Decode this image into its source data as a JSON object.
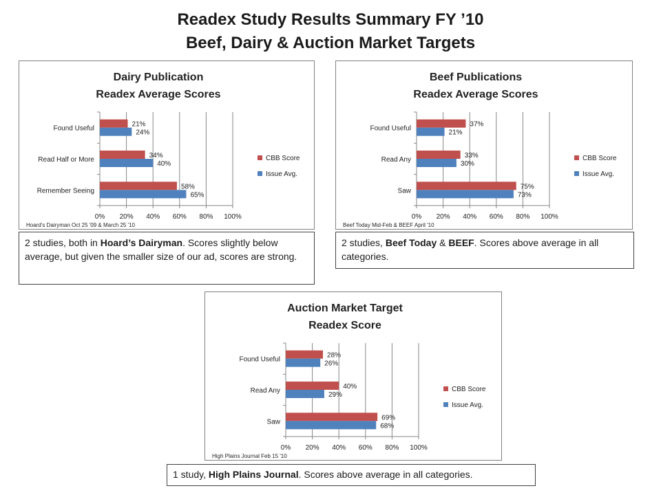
{
  "page": {
    "title_line1": "Readex Study Results Summary FY ’10",
    "title_line2": "Beef, Dairy & Auction Market Targets"
  },
  "colors": {
    "cbb": "#c0504d",
    "issue": "#4f81bd",
    "grid": "#868686"
  },
  "legend": {
    "cbb": "CBB Score",
    "issue": "Issue Avg."
  },
  "chart_data": [
    {
      "type": "bar",
      "orientation": "horizontal",
      "title": [
        "Dairy Publication",
        "Readex Average Scores"
      ],
      "categories": [
        "Found Useful",
        "Read Half or More",
        "Remember Seeing"
      ],
      "series": [
        {
          "name": "CBB Score",
          "values": [
            21,
            34,
            58
          ],
          "labels": [
            "21%",
            "34%",
            "58%"
          ]
        },
        {
          "name": "Issue Avg.",
          "values": [
            24,
            40,
            65
          ],
          "labels": [
            "24%",
            "40%",
            "65%"
          ]
        }
      ],
      "xlim": [
        0,
        100
      ],
      "xticks": [
        "0%",
        "20%",
        "40%",
        "60%",
        "80%",
        "100%"
      ],
      "grid": true,
      "legend_position": "right",
      "source": "Hoard's Dairyman Oct 25 '09 & March 25 '10"
    },
    {
      "type": "bar",
      "orientation": "horizontal",
      "title": [
        "Beef Publications",
        "Readex Average Scores"
      ],
      "categories": [
        "Found Useful",
        "Read Any",
        "Saw"
      ],
      "series": [
        {
          "name": "CBB Score",
          "values": [
            37,
            33,
            75
          ],
          "labels": [
            "37%",
            "33%",
            "75%"
          ]
        },
        {
          "name": "Issue Avg.",
          "values": [
            21,
            30,
            73
          ],
          "labels": [
            "21%",
            "30%",
            "73%"
          ]
        }
      ],
      "xlim": [
        0,
        100
      ],
      "xticks": [
        "0%",
        "20%",
        "40%",
        "60%",
        "80%",
        "100%"
      ],
      "grid": true,
      "legend_position": "right",
      "source": "Beef Today Mid-Feb & BEEF April '10"
    },
    {
      "type": "bar",
      "orientation": "horizontal",
      "title": [
        "Auction Market Target",
        "Readex Score"
      ],
      "categories": [
        "Found Useful",
        "Read Any",
        "Saw"
      ],
      "series": [
        {
          "name": "CBB Score",
          "values": [
            28,
            40,
            69
          ],
          "labels": [
            "28%",
            "40%",
            "69%"
          ]
        },
        {
          "name": "Issue Avg.",
          "values": [
            26,
            29,
            68
          ],
          "labels": [
            "26%",
            "29%",
            "68%"
          ]
        }
      ],
      "xlim": [
        0,
        100
      ],
      "xticks": [
        "0%",
        "20%",
        "40%",
        "60%",
        "80%",
        "100%"
      ],
      "grid": true,
      "legend_position": "right",
      "source": "High Plains Journal Feb 15 '10"
    }
  ],
  "notes": {
    "dairy": {
      "a": "2 studies, both in ",
      "b": "Hoard’s Dairyman",
      "c": ". Scores slightly below average, but given the smaller size of our ad, scores are strong."
    },
    "beef": {
      "a": "2 studies, ",
      "b": "Beef Today",
      "c": " & ",
      "d": "BEEF",
      "e": ". Scores above average in all categories."
    },
    "auction": {
      "a": "1 study, ",
      "b": "High Plains Journal",
      "c": ". Scores above average in all categories."
    }
  }
}
